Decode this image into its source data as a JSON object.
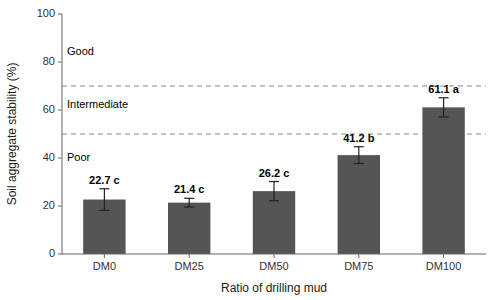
{
  "chart_data": {
    "type": "bar",
    "categories": [
      "DM0",
      "DM25",
      "DM50",
      "DM75",
      "DM100"
    ],
    "values": [
      22.7,
      21.4,
      26.2,
      41.2,
      61.1
    ],
    "errors": [
      4.5,
      1.8,
      4.0,
      3.5,
      4.0
    ],
    "value_labels": [
      "22.7 c",
      "21.4 c",
      "26.2 c",
      "41.2 b",
      "61.1 a"
    ],
    "data_labels": true,
    "color": "#555555",
    "xlabel": "Ratio of drilling mud",
    "ylabel": "Soil aggregate stability (%)",
    "ylim": [
      0,
      100
    ],
    "yticks": [
      0,
      20,
      40,
      60,
      80,
      100
    ],
    "grid": false,
    "reference_lines": {
      "values": [
        50,
        70
      ],
      "color": "#888888",
      "line_style": "dashed"
    },
    "annotations": [
      {
        "text": "Good",
        "y": 84
      },
      {
        "text": "Intermediate",
        "y": 62
      },
      {
        "text": "Poor",
        "y": 40
      }
    ]
  }
}
